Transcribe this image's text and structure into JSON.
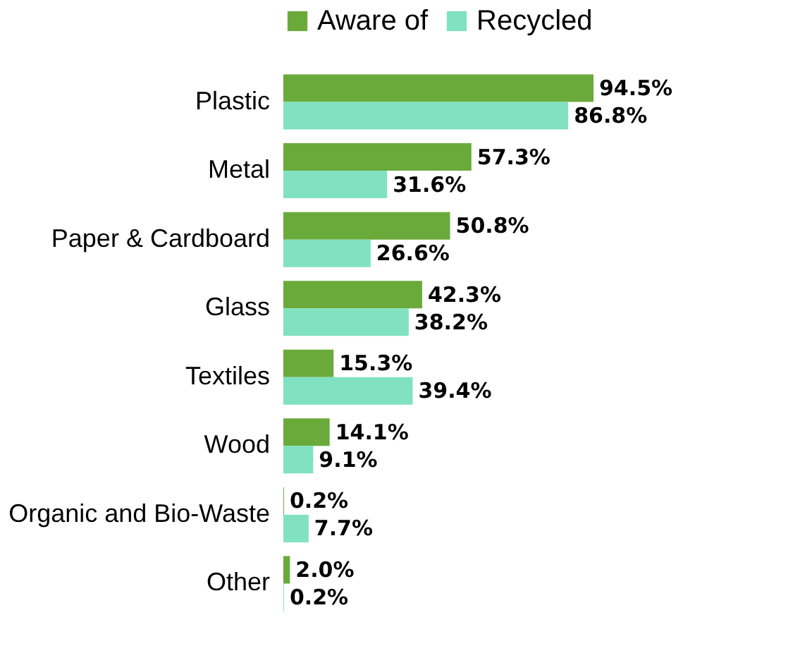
{
  "chart_data": {
    "type": "bar",
    "orientation": "horizontal",
    "legend": "top",
    "categories": [
      "Plastic",
      "Metal",
      "Paper & Cardboard",
      "Glass",
      "Textiles",
      "Wood",
      "Organic and Bio-Waste",
      "Other"
    ],
    "series": [
      {
        "name": "Aware of",
        "color": "#6aaa3a",
        "values": [
          94.5,
          57.3,
          50.8,
          42.3,
          15.3,
          14.1,
          0.2,
          2.0
        ],
        "value_labels": [
          "94.5%",
          "57.3%",
          "50.8%",
          "42.3%",
          "15.3%",
          "14.1%",
          "0.2%",
          "2.0%"
        ]
      },
      {
        "name": "Recycled",
        "color": "#80e2c0",
        "values": [
          86.8,
          31.6,
          26.6,
          38.2,
          39.4,
          9.1,
          7.7,
          0.2
        ],
        "value_labels": [
          "86.8%",
          "31.6%",
          "26.6%",
          "38.2%",
          "39.4%",
          "9.1%",
          "7.7%",
          "0.2%"
        ]
      }
    ]
  }
}
